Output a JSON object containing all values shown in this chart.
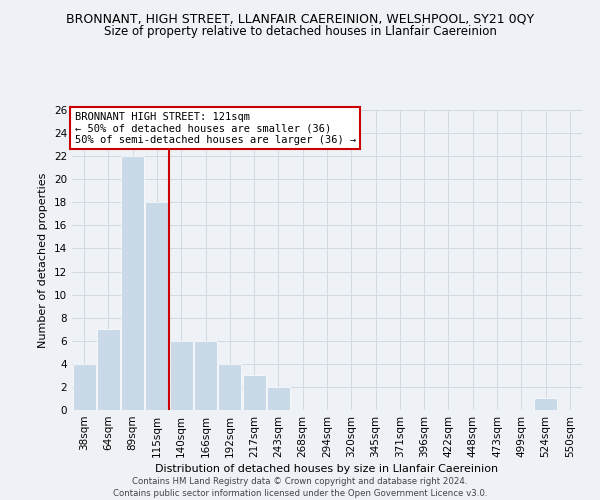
{
  "title": "BRONNANT, HIGH STREET, LLANFAIR CAEREINION, WELSHPOOL, SY21 0QY",
  "subtitle": "Size of property relative to detached houses in Llanfair Caereinion",
  "xlabel": "Distribution of detached houses by size in Llanfair Caereinion",
  "ylabel": "Number of detached properties",
  "bar_labels": [
    "38sqm",
    "64sqm",
    "89sqm",
    "115sqm",
    "140sqm",
    "166sqm",
    "192sqm",
    "217sqm",
    "243sqm",
    "268sqm",
    "294sqm",
    "320sqm",
    "345sqm",
    "371sqm",
    "396sqm",
    "422sqm",
    "448sqm",
    "473sqm",
    "499sqm",
    "524sqm",
    "550sqm"
  ],
  "bar_values": [
    4,
    7,
    22,
    18,
    6,
    6,
    4,
    3,
    2,
    0,
    0,
    0,
    0,
    0,
    0,
    0,
    0,
    0,
    0,
    1,
    0
  ],
  "bar_color": "#cad9e8",
  "bar_edge_color": "#ffffff",
  "grid_color": "#d0dae2",
  "vline_x": 3.5,
  "vline_color": "#cc0000",
  "annotation_title": "BRONNANT HIGH STREET: 121sqm",
  "annotation_line1": "← 50% of detached houses are smaller (36)",
  "annotation_line2": "50% of semi-detached houses are larger (36) →",
  "annotation_box_facecolor": "#ffffff",
  "annotation_box_edgecolor": "#cc0000",
  "ylim": [
    0,
    26
  ],
  "yticks": [
    0,
    2,
    4,
    6,
    8,
    10,
    12,
    14,
    16,
    18,
    20,
    22,
    24,
    26
  ],
  "footer1": "Contains HM Land Registry data © Crown copyright and database right 2024.",
  "footer2": "Contains public sector information licensed under the Open Government Licence v3.0.",
  "bg_color": "#eef2f6",
  "plot_bg_color": "#eef2f6",
  "title_fontsize": 9,
  "subtitle_fontsize": 8.5,
  "xlabel_fontsize": 8,
  "ylabel_fontsize": 8,
  "tick_fontsize": 7.5,
  "annotation_fontsize": 7.5,
  "footer_fontsize": 6.2
}
